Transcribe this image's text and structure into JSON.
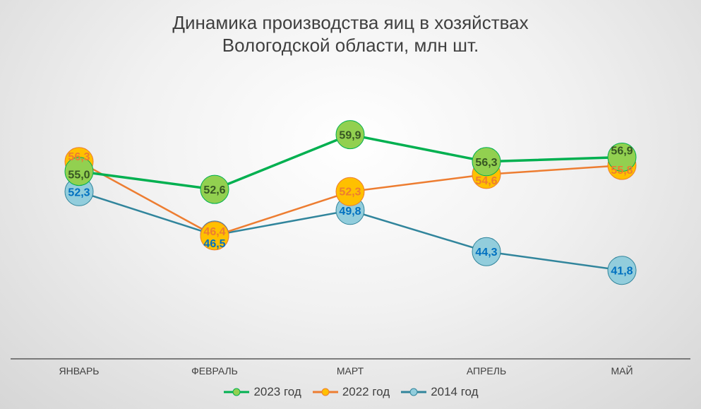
{
  "title_line1": "Динамика производства яиц в хозяйствах",
  "title_line2": "Вологодской области, млн шт.",
  "chart_data": {
    "type": "line",
    "title": "Динамика производства яиц в хозяйствах Вологодской области, млн шт.",
    "categories": [
      "ЯНВАРЬ",
      "ФЕВРАЛЬ",
      "МАРТ",
      "АПРЕЛЬ",
      "МАЙ"
    ],
    "series": [
      {
        "name": "2023 год",
        "values": [
          55.0,
          52.6,
          59.9,
          56.3,
          56.9
        ],
        "labels": [
          "55,0",
          "52,6",
          "59,9",
          "56,3",
          "56,9"
        ],
        "line_color": "#00B050",
        "marker_color": "#92D050",
        "label_color": "#375623"
      },
      {
        "name": "2022 год",
        "values": [
          56.3,
          46.4,
          52.3,
          54.6,
          55.8
        ],
        "labels": [
          "56,3",
          "46,4",
          "52,3",
          "54,6",
          "55,8"
        ],
        "line_color": "#ED7D31",
        "marker_color": "#FFC000",
        "label_color": "#ED7D31"
      },
      {
        "name": "2014 год",
        "values": [
          52.3,
          46.5,
          49.8,
          44.3,
          41.8
        ],
        "labels": [
          "52,3",
          "46,5",
          "49,8",
          "44,3",
          "41,8"
        ],
        "line_color": "#31859C",
        "marker_color": "#92CDDC",
        "label_color": "#0070C0"
      }
    ],
    "ylim": [
      30,
      70
    ],
    "legend_position": "bottom",
    "grid": false
  }
}
